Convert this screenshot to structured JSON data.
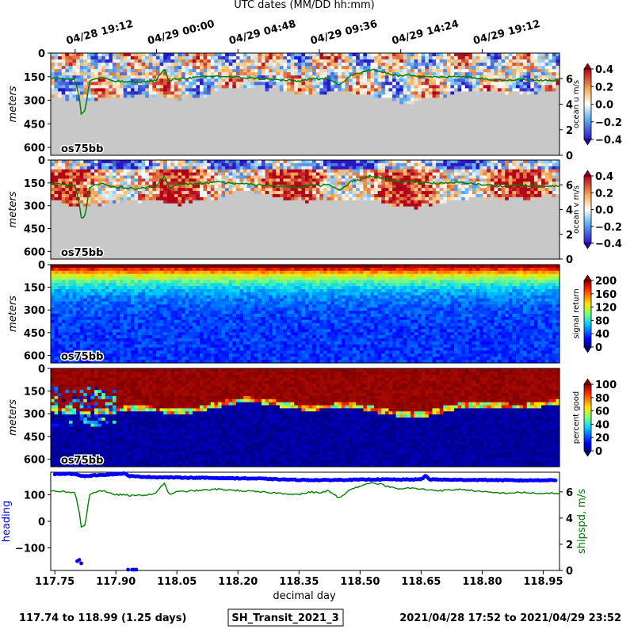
{
  "top_axis": {
    "title": "UTC dates (MM/DD hh:mm)",
    "labels": [
      "04/28 19:12",
      "04/29 00:00",
      "04/29 04:48",
      "04/29 09:36",
      "04/29 14:24",
      "04/29 19:12"
    ]
  },
  "bottom_axis": {
    "title": "decimal day",
    "labels": [
      "117.75",
      "117.90",
      "118.05",
      "118.20",
      "118.35",
      "118.50",
      "118.65",
      "118.80",
      "118.95"
    ]
  },
  "footer": {
    "left": "117.74 to 118.99 (1.25 days)",
    "center": "SH_Transit_2021_3",
    "right": "2021/04/28 17:52 to 2021/04/29 23:52",
    "left_color": "#800080",
    "right_color": "#800080"
  },
  "panel_tag": "os75bb",
  "depth_label": "meters",
  "depth_ticks": [
    "0",
    "150",
    "300",
    "450",
    "600"
  ],
  "shipspd_ticks": [
    "0",
    "2",
    "4",
    "6"
  ],
  "colors": {
    "shipspd": "#008000",
    "heading": "#0000ff",
    "nodata": "#c8c8c8"
  },
  "colorbars": [
    {
      "label": "ocean u m/s",
      "ticks": [
        "0.4",
        "0.2",
        "0.0",
        "−0.2",
        "−0.4"
      ]
    },
    {
      "label": "ocean v m/s",
      "ticks": [
        "0.4",
        "0.2",
        "0.0",
        "−0.2",
        "−0.4"
      ]
    },
    {
      "label": "signal return",
      "ticks": [
        "200",
        "160",
        "120",
        "80",
        "40",
        "0"
      ]
    },
    {
      "label": "percent good",
      "ticks": [
        "100",
        "80",
        "60",
        "40",
        "20",
        "0"
      ]
    }
  ],
  "heading_panel": {
    "left_label": "heading",
    "right_label": "shipspd, m/s",
    "left_ticks": [
      "100",
      "0",
      "−100"
    ],
    "right_ticks": [
      "6",
      "4",
      "2",
      "0"
    ]
  },
  "chart_data": [
    {
      "type": "heatmap",
      "name": "ocean u m/s",
      "xlim": [
        117.74,
        118.99
      ],
      "ylim": [
        650,
        0
      ],
      "zlim": [
        -0.4,
        0.4
      ]
    },
    {
      "type": "heatmap",
      "name": "ocean v m/s",
      "xlim": [
        117.74,
        118.99
      ],
      "ylim": [
        650,
        0
      ],
      "zlim": [
        -0.4,
        0.4
      ]
    },
    {
      "type": "heatmap",
      "name": "signal return",
      "xlim": [
        117.74,
        118.99
      ],
      "ylim": [
        650,
        0
      ],
      "zlim": [
        0,
        200
      ]
    },
    {
      "type": "heatmap",
      "name": "percent good",
      "xlim": [
        117.74,
        118.99
      ],
      "ylim": [
        650,
        0
      ],
      "zlim": [
        0,
        100
      ]
    },
    {
      "type": "line",
      "xlim": [
        117.74,
        118.99
      ],
      "heading_ylim": [
        -185,
        185
      ],
      "shipspd_ylim": [
        0,
        7.5
      ],
      "shipspd": {
        "x": [
          117.74,
          117.78,
          117.8,
          117.81,
          117.815,
          117.825,
          117.835,
          117.85,
          117.87,
          117.88,
          117.9,
          117.95,
          117.98,
          118.0,
          118.01,
          118.02,
          118.03,
          118.04,
          118.05,
          118.1,
          118.15,
          118.2,
          118.25,
          118.3,
          118.35,
          118.38,
          118.4,
          118.42,
          118.45,
          118.48,
          118.5,
          118.52,
          118.55,
          118.58,
          118.6,
          118.62,
          118.65,
          118.7,
          118.75,
          118.8,
          118.85,
          118.9,
          118.95,
          118.99
        ],
        "y": [
          6.1,
          6.0,
          5.9,
          4.5,
          3.3,
          3.5,
          5.8,
          6.0,
          6.1,
          5.9,
          5.8,
          5.7,
          5.8,
          5.9,
          6.4,
          6.7,
          5.8,
          5.9,
          6.0,
          6.1,
          6.2,
          6.1,
          6.0,
          5.9,
          5.8,
          6.0,
          5.9,
          6.1,
          5.5,
          6.3,
          6.4,
          6.7,
          6.6,
          6.3,
          6.2,
          6.3,
          6.2,
          6.1,
          6.2,
          6.0,
          5.9,
          5.95,
          5.85,
          5.9
        ]
      },
      "heading": {
        "x": [
          117.75,
          117.78,
          117.8,
          117.82,
          117.84,
          117.86,
          117.88,
          117.9,
          117.92,
          117.935,
          117.96,
          118.0,
          118.05,
          118.1,
          118.15,
          118.2,
          118.25,
          118.3,
          118.35,
          118.4,
          118.45,
          118.5,
          118.55,
          118.6,
          118.65,
          118.662,
          118.67,
          118.7,
          118.75,
          118.8,
          118.85,
          118.9,
          118.95,
          118.98
        ],
        "y": [
          178,
          179,
          178,
          170,
          172,
          175,
          176,
          178,
          180,
          170,
          168,
          166,
          165,
          164,
          163,
          162,
          161,
          158,
          156,
          155,
          156,
          157,
          158,
          157,
          158,
          172,
          158,
          157,
          156,
          156,
          155,
          154,
          155,
          155
        ]
      },
      "heading_outliers": {
        "x": [
          117.805,
          117.81,
          117.815,
          117.93,
          117.94,
          117.945,
          117.95
        ],
        "y": [
          -150,
          -145,
          -158,
          -182,
          -182,
          -182,
          -182
        ]
      }
    }
  ]
}
